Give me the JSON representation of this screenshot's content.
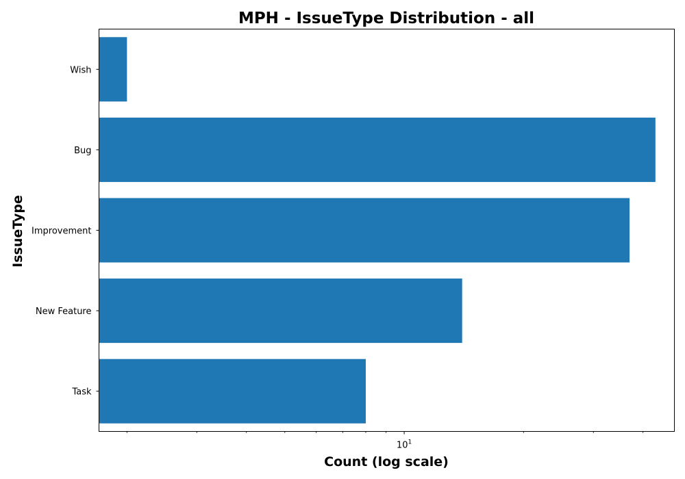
{
  "chart_data": {
    "type": "bar",
    "orientation": "horizontal",
    "title": "MPH - IssueType Distribution - all",
    "xlabel": "Count (log scale)",
    "ylabel": "IssueType",
    "x_scale": "log",
    "xlim": [
      1.7,
      48
    ],
    "categories": [
      "Wish",
      "Bug",
      "Improvement",
      "New Feature",
      "Task"
    ],
    "values": [
      2,
      43,
      37,
      14,
      8
    ],
    "major_ticks": [
      {
        "value": 10,
        "base": "10",
        "exponent": "1"
      }
    ],
    "minor_ticks": [
      2,
      3,
      4,
      5,
      6,
      7,
      8,
      9,
      20,
      30,
      40
    ],
    "bar_color": "#1f77b4",
    "grid": false,
    "legend": "none"
  }
}
